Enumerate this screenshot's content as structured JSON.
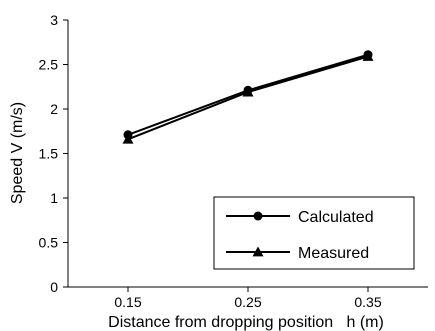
{
  "chart_data": {
    "type": "line",
    "xlabel": "Distance from dropping position   h (m)",
    "ylabel": "Speed  V  (m/s)",
    "xlim": [
      0.1,
      0.4
    ],
    "ylim": [
      0,
      3
    ],
    "x_ticks": [
      "0.15",
      "0.25",
      "0.35"
    ],
    "y_ticks": [
      "0",
      "0.5",
      "1",
      "1.5",
      "2",
      "2.5",
      "3"
    ],
    "grid": false,
    "legend_position": "bottom-right",
    "series": [
      {
        "name": "Calculated",
        "marker": "circle",
        "x": [
          0.15,
          0.25,
          0.35
        ],
        "y": [
          1.71,
          2.21,
          2.61
        ]
      },
      {
        "name": "Measured",
        "marker": "triangle",
        "x": [
          0.15,
          0.25,
          0.35
        ],
        "y": [
          1.66,
          2.19,
          2.59
        ]
      }
    ]
  }
}
